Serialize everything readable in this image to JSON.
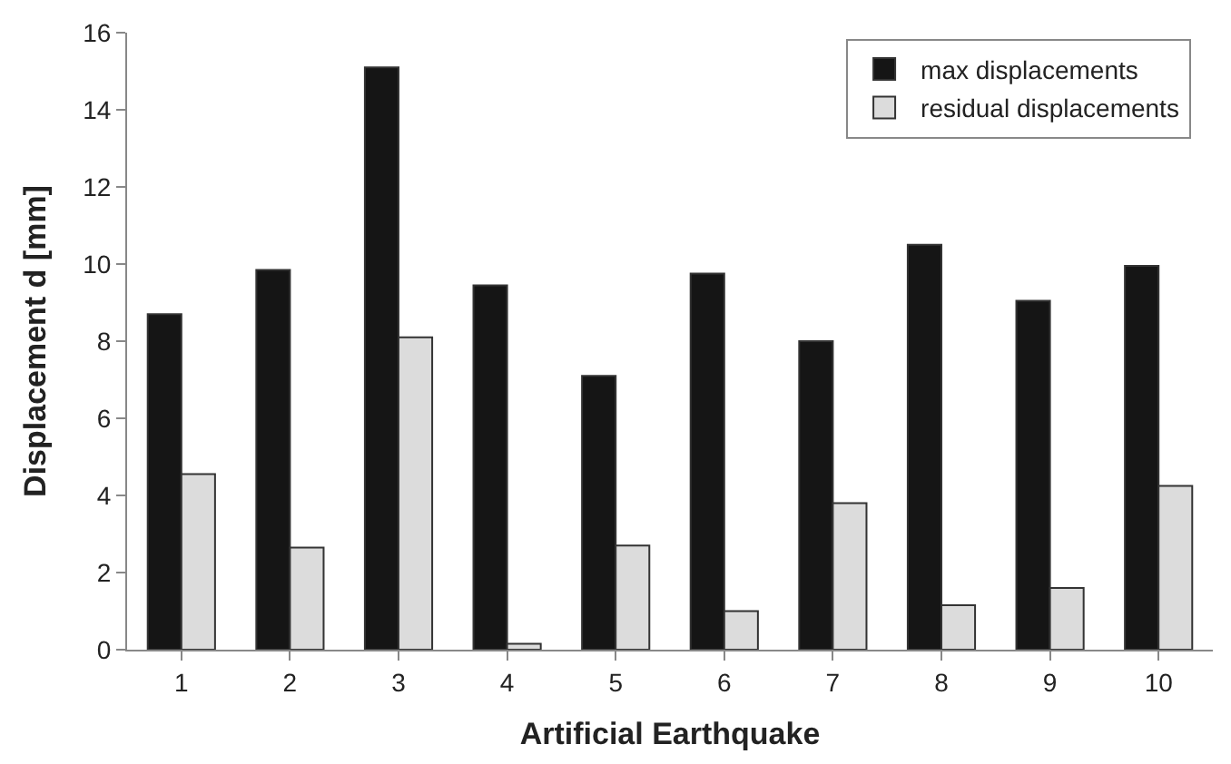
{
  "chart_data": {
    "type": "bar",
    "xlabel": "Artificial Earthquake",
    "ylabel": "Displacement d [mm]",
    "categories": [
      "1",
      "2",
      "3",
      "4",
      "5",
      "6",
      "7",
      "8",
      "9",
      "10"
    ],
    "series": [
      {
        "name": "max displacements",
        "color": "#151515",
        "values": [
          8.7,
          9.85,
          15.1,
          9.45,
          7.1,
          9.75,
          8.0,
          10.5,
          9.05,
          9.95
        ]
      },
      {
        "name": "residual displacements",
        "color": "#dcdcdc",
        "values": [
          4.55,
          2.65,
          8.1,
          0.15,
          2.7,
          1.0,
          3.8,
          1.15,
          1.6,
          4.25
        ]
      }
    ],
    "ylim": [
      0,
      16
    ],
    "yticks": [
      0,
      2,
      4,
      6,
      8,
      10,
      12,
      14,
      16
    ],
    "legend": "top right"
  }
}
